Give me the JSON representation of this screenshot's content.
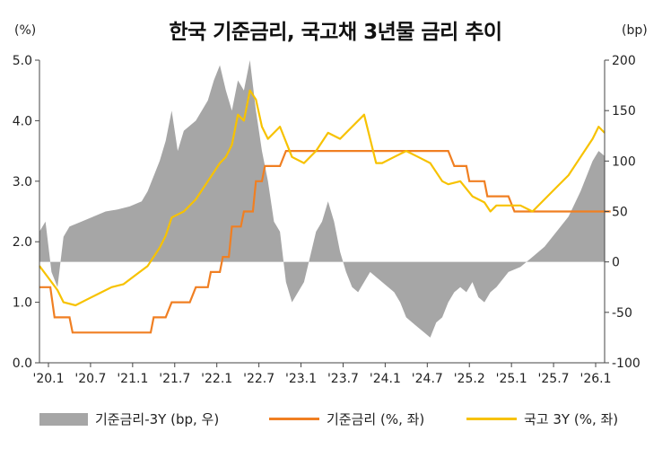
{
  "chart_data": {
    "type": "line",
    "title": "한국 기준금리, 국고채 3년물 금리 추이",
    "left_unit": "(%)",
    "right_unit": "(bp)",
    "ylim_left": [
      0.0,
      5.0
    ],
    "ylim_right": [
      -100,
      200
    ],
    "yticks_left": [
      "0.0",
      "1.0",
      "2.0",
      "3.0",
      "4.0",
      "5.0"
    ],
    "yticks_right": [
      "-100",
      "-50",
      "0",
      "50",
      "100",
      "150",
      "200"
    ],
    "xticks": [
      "'20.1",
      "'20.7",
      "'21.1",
      "'21.7",
      "'22.1",
      "'22.7",
      "'23.1",
      "'23.7",
      "'24.1",
      "'24.7",
      "'25.2",
      "'25.1",
      "'25.7",
      "'26.1"
    ],
    "series": [
      {
        "name": "기준금리 (%, 좌)",
        "color": "#f07f22",
        "axis": "left",
        "style": "step",
        "points": [
          [
            0,
            1.25
          ],
          [
            1.8,
            1.25
          ],
          [
            2.5,
            0.75
          ],
          [
            5,
            0.75
          ],
          [
            5.5,
            0.5
          ],
          [
            18.5,
            0.5
          ],
          [
            19,
            0.75
          ],
          [
            21,
            0.75
          ],
          [
            22,
            1.0
          ],
          [
            25,
            1.0
          ],
          [
            26,
            1.25
          ],
          [
            28,
            1.25
          ],
          [
            28.5,
            1.5
          ],
          [
            30,
            1.5
          ],
          [
            30.5,
            1.75
          ],
          [
            31.5,
            1.75
          ],
          [
            32,
            2.25
          ],
          [
            33.5,
            2.25
          ],
          [
            34,
            2.5
          ],
          [
            35.5,
            2.5
          ],
          [
            36,
            3.0
          ],
          [
            37,
            3.0
          ],
          [
            37.5,
            3.25
          ],
          [
            40,
            3.25
          ],
          [
            41,
            3.5
          ],
          [
            68,
            3.5
          ],
          [
            69,
            3.25
          ],
          [
            71,
            3.25
          ],
          [
            71.5,
            3.0
          ],
          [
            74,
            3.0
          ],
          [
            74.5,
            2.75
          ],
          [
            78,
            2.75
          ],
          [
            79,
            2.5
          ],
          [
            95,
            2.5
          ]
        ]
      },
      {
        "name": "국고 3Y (%, 좌)",
        "color": "#f7c200",
        "axis": "left",
        "points": [
          [
            0,
            1.6
          ],
          [
            1.5,
            1.4
          ],
          [
            3,
            1.2
          ],
          [
            4,
            1.0
          ],
          [
            6,
            0.95
          ],
          [
            8,
            1.05
          ],
          [
            10,
            1.15
          ],
          [
            12,
            1.25
          ],
          [
            14,
            1.3
          ],
          [
            16,
            1.45
          ],
          [
            18,
            1.6
          ],
          [
            20,
            1.9
          ],
          [
            21,
            2.1
          ],
          [
            22,
            2.4
          ],
          [
            24,
            2.5
          ],
          [
            26,
            2.7
          ],
          [
            28,
            3.0
          ],
          [
            30,
            3.3
          ],
          [
            31,
            3.4
          ],
          [
            32,
            3.6
          ],
          [
            33,
            4.1
          ],
          [
            34,
            4.0
          ],
          [
            35,
            4.5
          ],
          [
            36,
            4.35
          ],
          [
            37,
            3.9
          ],
          [
            38,
            3.7
          ],
          [
            40,
            3.9
          ],
          [
            42,
            3.4
          ],
          [
            44,
            3.3
          ],
          [
            46,
            3.5
          ],
          [
            48,
            3.8
          ],
          [
            50,
            3.7
          ],
          [
            52,
            3.9
          ],
          [
            54,
            4.1
          ],
          [
            55,
            3.7
          ],
          [
            56,
            3.3
          ],
          [
            57,
            3.3
          ],
          [
            59,
            3.4
          ],
          [
            61,
            3.5
          ],
          [
            63,
            3.4
          ],
          [
            65,
            3.3
          ],
          [
            67,
            3.0
          ],
          [
            68,
            2.95
          ],
          [
            70,
            3.0
          ],
          [
            72,
            2.75
          ],
          [
            74,
            2.65
          ],
          [
            75,
            2.5
          ],
          [
            76,
            2.6
          ],
          [
            78,
            2.6
          ],
          [
            80,
            2.6
          ],
          [
            82,
            2.5
          ],
          [
            84,
            2.7
          ],
          [
            86,
            2.9
          ],
          [
            88,
            3.1
          ],
          [
            90,
            3.4
          ],
          [
            92,
            3.7
          ],
          [
            93,
            3.9
          ],
          [
            94,
            3.8
          ]
        ]
      },
      {
        "name": "기준금리-3Y (bp, 우)",
        "color": "#a6a6a6",
        "axis": "right",
        "style": "area",
        "points": [
          [
            0,
            30
          ],
          [
            1,
            40
          ],
          [
            2,
            -10
          ],
          [
            3,
            -25
          ],
          [
            4,
            25
          ],
          [
            5,
            35
          ],
          [
            7,
            40
          ],
          [
            9,
            45
          ],
          [
            11,
            50
          ],
          [
            13,
            52
          ],
          [
            15,
            55
          ],
          [
            17,
            60
          ],
          [
            18,
            70
          ],
          [
            20,
            100
          ],
          [
            21,
            120
          ],
          [
            22,
            150
          ],
          [
            23,
            110
          ],
          [
            24,
            130
          ],
          [
            26,
            140
          ],
          [
            28,
            160
          ],
          [
            29,
            180
          ],
          [
            30,
            195
          ],
          [
            31,
            170
          ],
          [
            32,
            150
          ],
          [
            33,
            180
          ],
          [
            34,
            170
          ],
          [
            35,
            200
          ],
          [
            36,
            150
          ],
          [
            37,
            110
          ],
          [
            38,
            80
          ],
          [
            39,
            40
          ],
          [
            40,
            30
          ],
          [
            41,
            -20
          ],
          [
            42,
            -40
          ],
          [
            43,
            -30
          ],
          [
            44,
            -20
          ],
          [
            45,
            5
          ],
          [
            46,
            30
          ],
          [
            47,
            40
          ],
          [
            48,
            60
          ],
          [
            49,
            40
          ],
          [
            50,
            10
          ],
          [
            51,
            -10
          ],
          [
            52,
            -25
          ],
          [
            53,
            -30
          ],
          [
            54,
            -20
          ],
          [
            55,
            -10
          ],
          [
            56,
            -15
          ],
          [
            57,
            -20
          ],
          [
            58,
            -25
          ],
          [
            59,
            -30
          ],
          [
            60,
            -40
          ],
          [
            61,
            -55
          ],
          [
            62,
            -60
          ],
          [
            63,
            -65
          ],
          [
            64,
            -70
          ],
          [
            65,
            -75
          ],
          [
            66,
            -60
          ],
          [
            67,
            -55
          ],
          [
            68,
            -40
          ],
          [
            69,
            -30
          ],
          [
            70,
            -25
          ],
          [
            71,
            -30
          ],
          [
            72,
            -20
          ],
          [
            73,
            -35
          ],
          [
            74,
            -40
          ],
          [
            75,
            -30
          ],
          [
            76,
            -25
          ],
          [
            78,
            -10
          ],
          [
            80,
            -5
          ],
          [
            82,
            5
          ],
          [
            84,
            15
          ],
          [
            86,
            30
          ],
          [
            88,
            45
          ],
          [
            90,
            70
          ],
          [
            92,
            100
          ],
          [
            93,
            110
          ],
          [
            94,
            105
          ]
        ]
      }
    ],
    "legend": [
      "기준금리-3Y (bp, 우)",
      "기준금리 (%, 좌)",
      "국고 3Y (%, 좌)"
    ],
    "legend_placement": "bottom",
    "grid": false
  }
}
